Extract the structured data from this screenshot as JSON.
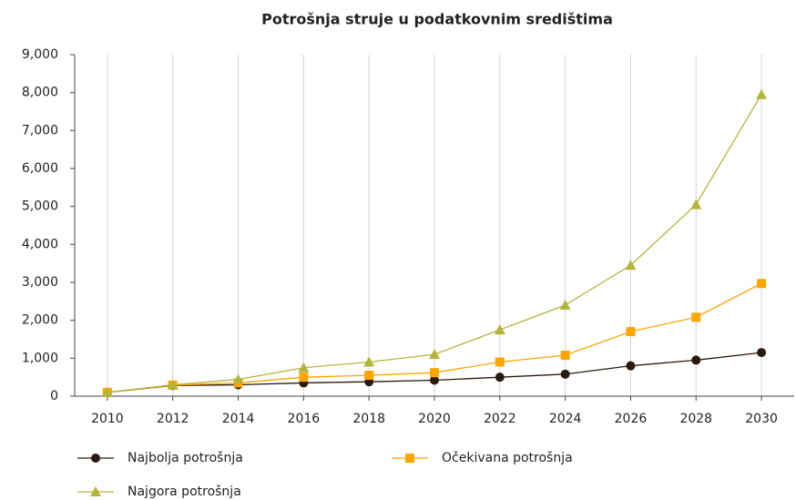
{
  "chart_data": {
    "type": "line",
    "title": "Potrošnja struje u podatkovnim središtima",
    "x": [
      2010,
      2012,
      2014,
      2016,
      2018,
      2020,
      2022,
      2024,
      2026,
      2028,
      2030
    ],
    "series": [
      {
        "name": "Najbolja potrošnja",
        "color": "#2b1a0e",
        "marker": "circle",
        "values": [
          100,
          280,
          300,
          350,
          380,
          420,
          500,
          580,
          800,
          950,
          1150
        ]
      },
      {
        "name": "Očekivana potrošnja",
        "color": "#ffa500",
        "marker": "square",
        "values": [
          100,
          290,
          350,
          500,
          550,
          620,
          900,
          1080,
          1700,
          2080,
          2970
        ]
      },
      {
        "name": "Najgora potrošnja",
        "color": "#b5b43a",
        "marker": "triangle",
        "values": [
          100,
          300,
          440,
          750,
          900,
          1100,
          1750,
          2400,
          3450,
          5050,
          7950
        ]
      }
    ],
    "xlim": [
      2009,
      2031
    ],
    "xticks": [
      2010,
      2012,
      2014,
      2016,
      2018,
      2020,
      2022,
      2024,
      2026,
      2028,
      2030
    ],
    "ylim": [
      0,
      9000
    ],
    "yticks": [
      0,
      {
        "value": 1000,
        "label": "1,000"
      },
      {
        "value": 2000,
        "label": "2,000"
      },
      {
        "value": 3000,
        "label": "3,000"
      },
      {
        "value": 4000,
        "label": "4,000"
      },
      {
        "value": 5000,
        "label": "5,000"
      },
      {
        "value": 6000,
        "label": "6,000"
      },
      {
        "value": 7000,
        "label": "7,000"
      },
      {
        "value": 8000,
        "label": "8,000"
      },
      {
        "value": 9000,
        "label": "9,000"
      }
    ],
    "grid": "x",
    "legend": "bottom"
  }
}
